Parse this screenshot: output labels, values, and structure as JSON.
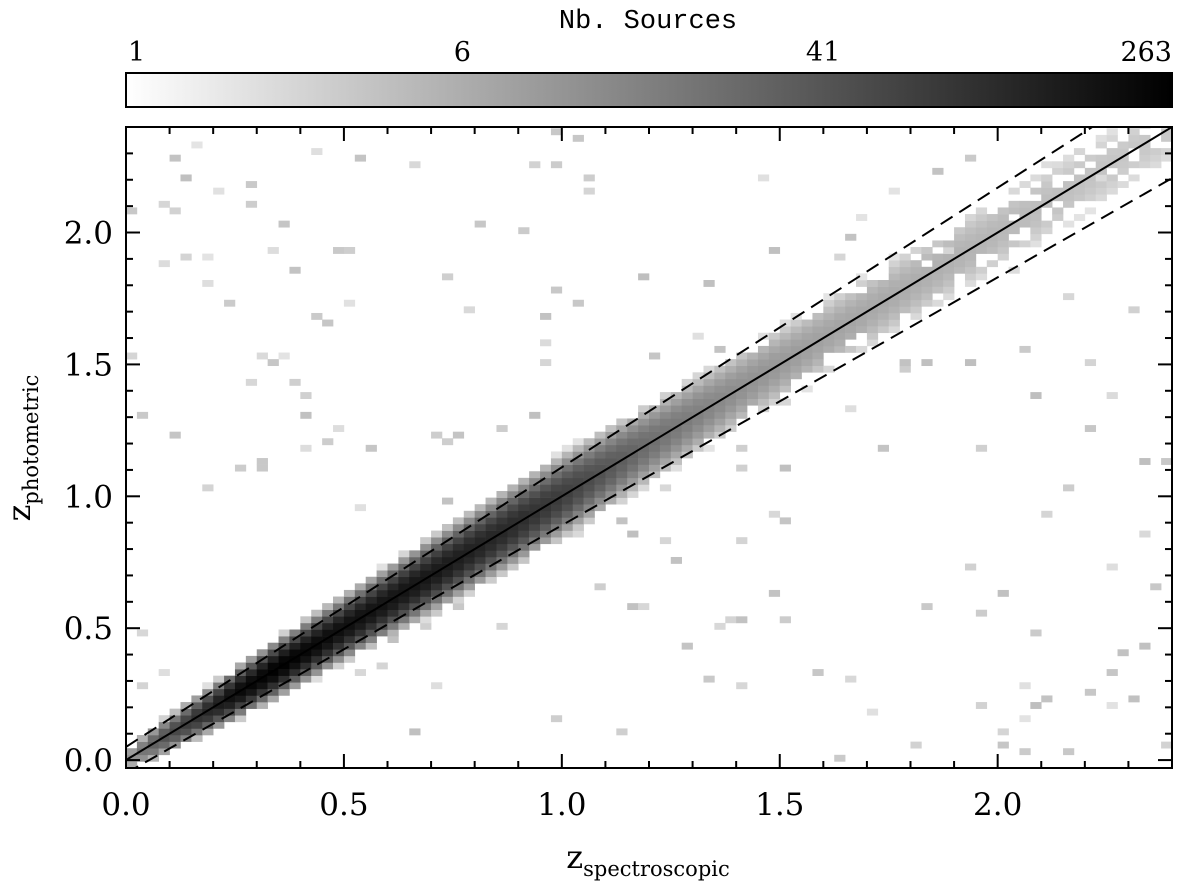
{
  "chart_data": {
    "type": "heatmap",
    "title": "",
    "colorbar": {
      "label": "Nb. Sources",
      "tick_labels": [
        "1",
        "6",
        "41",
        "263"
      ],
      "tick_values": [
        1,
        6,
        41,
        263
      ],
      "scale": "log",
      "cmap": "white-to-black"
    },
    "xlabel": {
      "main": "z",
      "sub": "spectroscopic"
    },
    "ylabel": {
      "main": "z",
      "sub": "photometric"
    },
    "xlim": [
      0,
      2.4
    ],
    "ylim": [
      -0.03,
      2.4
    ],
    "x_ticks": [
      {
        "value": 0.0,
        "label": "0.0"
      },
      {
        "value": 0.5,
        "label": "0.5"
      },
      {
        "value": 1.0,
        "label": "1.0"
      },
      {
        "value": 1.5,
        "label": "1.5"
      },
      {
        "value": 2.0,
        "label": "2.0"
      }
    ],
    "y_ticks": [
      {
        "value": 0.0,
        "label": "0.0"
      },
      {
        "value": 0.5,
        "label": "0.5"
      },
      {
        "value": 1.0,
        "label": "1.0"
      },
      {
        "value": 1.5,
        "label": "1.5"
      },
      {
        "value": 2.0,
        "label": "2.0"
      }
    ],
    "minor_tick_step": 0.1,
    "bin_size": 0.025,
    "reference_lines": [
      {
        "name": "1:1",
        "style": "solid",
        "slope": 1.0,
        "intercept": 0.0
      },
      {
        "name": "upper",
        "style": "dashed",
        "slope": 1.06,
        "intercept": 0.05
      },
      {
        "name": "lower",
        "style": "dashed",
        "slope": 0.94,
        "intercept": -0.05
      }
    ],
    "density_ridge": [
      {
        "x": 0.1,
        "count": 40
      },
      {
        "x": 0.25,
        "count": 200
      },
      {
        "x": 0.35,
        "count": 263
      },
      {
        "x": 0.5,
        "count": 180
      },
      {
        "x": 0.7,
        "count": 150
      },
      {
        "x": 0.9,
        "count": 90
      },
      {
        "x": 1.0,
        "count": 60
      },
      {
        "x": 1.2,
        "count": 18
      },
      {
        "x": 1.4,
        "count": 8
      },
      {
        "x": 1.6,
        "count": 5
      },
      {
        "x": 2.0,
        "count": 3
      },
      {
        "x": 2.3,
        "count": 2
      }
    ]
  }
}
